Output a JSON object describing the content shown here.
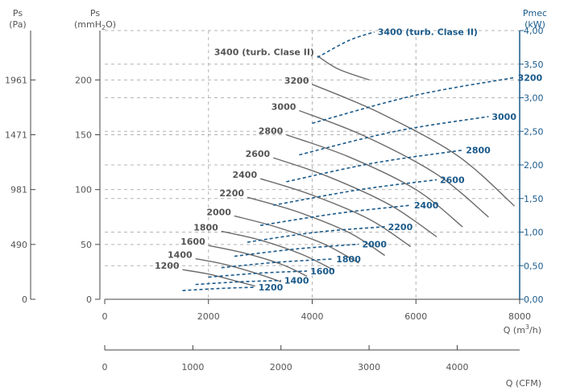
{
  "chart_data": {
    "type": "line",
    "axes": {
      "ps_pa": {
        "label_line1": "Ps",
        "label_line2": "(Pa)",
        "ticks": [
          "0",
          "490",
          "981",
          "1471",
          "1961"
        ],
        "tick_ps_mmh2o": [
          0,
          50,
          100,
          150,
          200
        ]
      },
      "ps_mm": {
        "label_line1": "Ps",
        "label_line2_pre": "(mmH",
        "label_line2_sub": "2",
        "label_line2_post": "O)",
        "range": [
          0,
          245
        ],
        "ticks": [
          "0",
          "50",
          "100",
          "150",
          "200"
        ],
        "tick_values": [
          0,
          50,
          100,
          150,
          200
        ]
      },
      "pmec": {
        "label_line1": "Pmec",
        "label_line2": "(kW)",
        "range": [
          0,
          4
        ],
        "ticks": [
          "0,00",
          "0,50",
          "1,00",
          "1,50",
          "2,00",
          "2,50",
          "3,00",
          "3,50",
          "4,00"
        ],
        "tick_values": [
          0,
          0.5,
          1,
          1.5,
          2,
          2.5,
          3,
          3.5,
          4
        ]
      },
      "q_m3h": {
        "label_pre": "Q (m",
        "label_sup": "3",
        "label_post": "/h)",
        "range": [
          0,
          8000
        ],
        "ticks": [
          "0",
          "2000",
          "4000",
          "6000",
          "8000"
        ],
        "tick_values": [
          0,
          2000,
          4000,
          6000,
          8000
        ]
      },
      "q_cfm": {
        "label": "Q (CFM)",
        "range": [
          0,
          4709
        ],
        "ticks": [
          "0",
          "1000",
          "2000",
          "3000",
          "4000"
        ],
        "tick_values": [
          0,
          1000,
          2000,
          3000,
          4000
        ]
      }
    },
    "grid": true,
    "colors": {
      "pressure": "#6b6b6b",
      "power": "#1a5a8a",
      "grid": "#b4b4b4",
      "axis": "#444444"
    },
    "pressure_curves": [
      {
        "name": "1200",
        "label": "1200",
        "x": [
          1500,
          2000,
          2500,
          2900
        ],
        "y": [
          27,
          23,
          17,
          12
        ]
      },
      {
        "name": "1400",
        "label": "1400",
        "x": [
          1750,
          2300,
          2900,
          3400
        ],
        "y": [
          37,
          32,
          24,
          16
        ]
      },
      {
        "name": "1600",
        "label": "1600",
        "x": [
          2000,
          2700,
          3400,
          3900
        ],
        "y": [
          49,
          42,
          32,
          21
        ]
      },
      {
        "name": "1800",
        "label": "1800",
        "x": [
          2250,
          3000,
          3800,
          4400
        ],
        "y": [
          62,
          54,
          41,
          27
        ]
      },
      {
        "name": "2000",
        "label": "2000",
        "x": [
          2500,
          3300,
          4200,
          4900
        ],
        "y": [
          76,
          66,
          51,
          33
        ]
      },
      {
        "name": "2200",
        "label": "2200",
        "x": [
          2750,
          3700,
          4700,
          5400
        ],
        "y": [
          93,
          80,
          61,
          40
        ]
      },
      {
        "name": "2400",
        "label": "2400",
        "x": [
          3000,
          4000,
          5100,
          5900
        ],
        "y": [
          110,
          95,
          73,
          48
        ]
      },
      {
        "name": "2600",
        "label": "2600",
        "x": [
          3250,
          4300,
          5500,
          6400
        ],
        "y": [
          129,
          112,
          86,
          57
        ]
      },
      {
        "name": "2800",
        "label": "2800",
        "x": [
          3500,
          4700,
          6000,
          6900
        ],
        "y": [
          150,
          130,
          100,
          66
        ]
      },
      {
        "name": "3000",
        "label": "3000",
        "x": [
          3750,
          5000,
          6400,
          7400
        ],
        "y": [
          172,
          149,
          114,
          75
        ]
      },
      {
        "name": "3200",
        "label": "3200",
        "x": [
          4000,
          5300,
          6800,
          7900
        ],
        "y": [
          196,
          170,
          131,
          85
        ]
      },
      {
        "name": "3400 (turb. Clase II)",
        "label": "3400 (turb. Clase II)",
        "x": [
          4100,
          4500,
          5100
        ],
        "y": [
          222,
          210,
          200
        ]
      }
    ],
    "power_curves": [
      {
        "name": "1200",
        "label": "1200",
        "x": [
          1500,
          2200,
          2900
        ],
        "y": [
          0.13,
          0.16,
          0.18
        ]
      },
      {
        "name": "1400",
        "label": "1400",
        "x": [
          1750,
          2600,
          3400
        ],
        "y": [
          0.22,
          0.26,
          0.28
        ]
      },
      {
        "name": "1600",
        "label": "1600",
        "x": [
          2000,
          3000,
          3900
        ],
        "y": [
          0.33,
          0.39,
          0.42
        ]
      },
      {
        "name": "1800",
        "label": "1800",
        "x": [
          2250,
          3300,
          4400
        ],
        "y": [
          0.47,
          0.55,
          0.6
        ]
      },
      {
        "name": "2000",
        "label": "2000",
        "x": [
          2500,
          3700,
          4900
        ],
        "y": [
          0.64,
          0.75,
          0.82
        ]
      },
      {
        "name": "2200",
        "label": "2200",
        "x": [
          2750,
          4100,
          5400
        ],
        "y": [
          0.85,
          1.0,
          1.08
        ]
      },
      {
        "name": "2400",
        "label": "2400",
        "x": [
          3000,
          4500,
          5900
        ],
        "y": [
          1.1,
          1.28,
          1.4
        ]
      },
      {
        "name": "2600",
        "label": "2600",
        "x": [
          3250,
          4900,
          6400
        ],
        "y": [
          1.4,
          1.63,
          1.78
        ]
      },
      {
        "name": "2800",
        "label": "2800",
        "x": [
          3500,
          5200,
          6900
        ],
        "y": [
          1.75,
          2.03,
          2.22
        ]
      },
      {
        "name": "3000",
        "label": "3000",
        "x": [
          3750,
          5600,
          7400
        ],
        "y": [
          2.15,
          2.5,
          2.72
        ]
      },
      {
        "name": "3200",
        "label": "3200",
        "x": [
          4000,
          5950,
          7900
        ],
        "y": [
          2.62,
          3.03,
          3.3
        ]
      },
      {
        "name": "3400 (turb. Clase II)",
        "label": "3400 (turb. Clase II)",
        "x": [
          4100,
          4700,
          5200
        ],
        "y": [
          3.6,
          3.85,
          3.98
        ]
      }
    ]
  }
}
